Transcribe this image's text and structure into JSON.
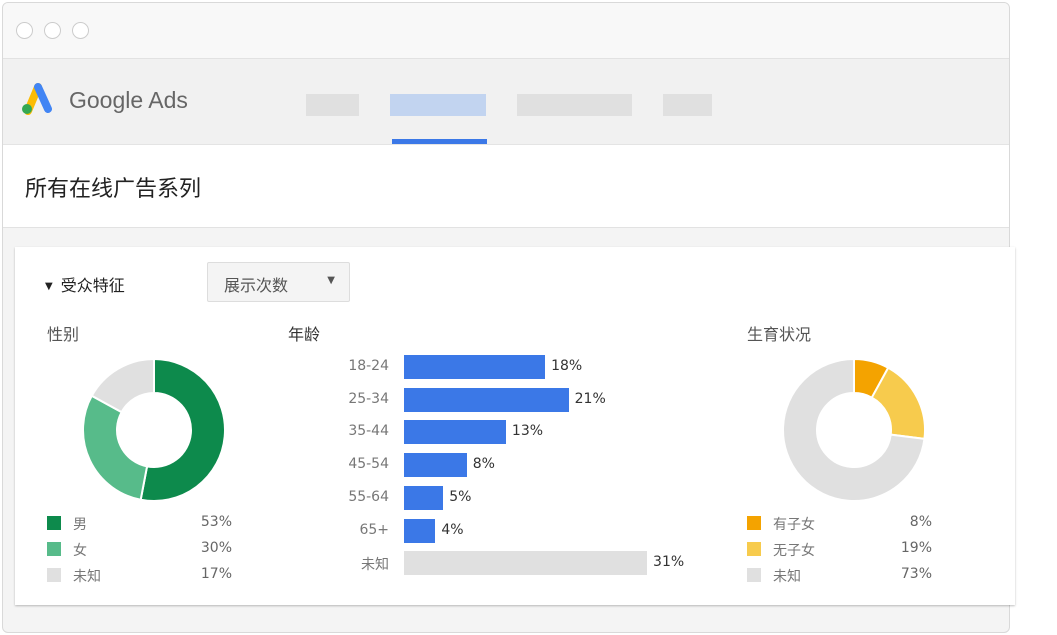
{
  "app": {
    "brand": "Google Ads",
    "logo_colors": [
      "#fbbc04",
      "#4285f4",
      "#34a853"
    ]
  },
  "nav": {
    "active_tab_index": 1,
    "accent": "#3b78e7"
  },
  "page": {
    "title": "所有在线广告系列"
  },
  "section": {
    "title": "受众特征",
    "collapse_icon": "triangle-down-icon",
    "metric_select": {
      "value": "展示次数"
    }
  },
  "chart_data": [
    {
      "type": "pie",
      "title": "性别",
      "donut": true,
      "slices": [
        {
          "label": "男",
          "value": 53,
          "pct": "53%",
          "color": "#0d8a4c"
        },
        {
          "label": "女",
          "value": 30,
          "pct": "30%",
          "color": "#57bb8a"
        },
        {
          "label": "未知",
          "value": 17,
          "pct": "17%",
          "color": "#e0e0e0"
        }
      ]
    },
    {
      "type": "bar",
      "orientation": "horizontal",
      "title": "年龄",
      "categories": [
        "18-24",
        "25-34",
        "35-44",
        "45-54",
        "55-64",
        "65+",
        "未知"
      ],
      "values": [
        18,
        21,
        13,
        8,
        5,
        4,
        31
      ],
      "labels": [
        "18%",
        "21%",
        "13%",
        "8%",
        "5%",
        "4%",
        "31%"
      ],
      "colors": [
        "#3b78e7",
        "#3b78e7",
        "#3b78e7",
        "#3b78e7",
        "#3b78e7",
        "#3b78e7",
        "#e0e0e0"
      ]
    },
    {
      "type": "pie",
      "title": "生育状况",
      "donut": true,
      "slices": [
        {
          "label": "有子女",
          "value": 8,
          "pct": "8%",
          "color": "#f4a300"
        },
        {
          "label": "无子女",
          "value": 19,
          "pct": "19%",
          "color": "#f7cb4d"
        },
        {
          "label": "未知",
          "value": 73,
          "pct": "73%",
          "color": "#e0e0e0"
        }
      ]
    }
  ]
}
